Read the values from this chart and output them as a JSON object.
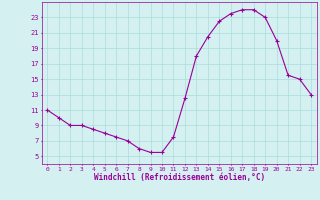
{
  "hours": [
    0,
    1,
    2,
    3,
    4,
    5,
    6,
    7,
    8,
    9,
    10,
    11,
    12,
    13,
    14,
    15,
    16,
    17,
    18,
    19,
    20,
    21,
    22,
    23
  ],
  "temps": [
    11,
    10,
    9,
    9,
    8.5,
    8,
    7.5,
    7,
    6,
    5.5,
    5.5,
    7.5,
    12.5,
    18,
    20.5,
    22.5,
    23.5,
    24,
    24,
    23,
    20,
    15.5,
    15,
    13
  ],
  "line_color": "#990099",
  "bg_color": "#d4f0f0",
  "grid_color": "#aadddd",
  "text_color": "#990099",
  "xlabel": "Windchill (Refroidissement éolien,°C)",
  "ylim": [
    4,
    25
  ],
  "xlim": [
    -0.5,
    23.5
  ],
  "yticks": [
    5,
    7,
    9,
    11,
    13,
    15,
    17,
    19,
    21,
    23
  ],
  "xticks": [
    0,
    1,
    2,
    3,
    4,
    5,
    6,
    7,
    8,
    9,
    10,
    11,
    12,
    13,
    14,
    15,
    16,
    17,
    18,
    19,
    20,
    21,
    22,
    23
  ]
}
